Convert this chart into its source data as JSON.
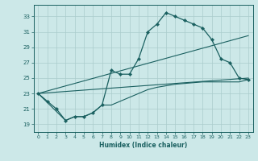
{
  "xlabel": "Humidex (Indice chaleur)",
  "bg_color": "#cce8e8",
  "grid_color": "#aacccc",
  "line_color": "#1a6060",
  "xlim": [
    -0.5,
    23.5
  ],
  "ylim": [
    18.0,
    34.5
  ],
  "yticks": [
    19,
    21,
    23,
    25,
    27,
    29,
    31,
    33
  ],
  "xticks": [
    0,
    1,
    2,
    3,
    4,
    5,
    6,
    7,
    8,
    9,
    10,
    11,
    12,
    13,
    14,
    15,
    16,
    17,
    18,
    19,
    20,
    21,
    22,
    23
  ],
  "main_x": [
    0,
    1,
    2,
    3,
    4,
    5,
    6,
    7,
    8,
    9,
    10,
    11,
    12,
    13,
    14,
    15,
    16,
    17,
    18,
    19,
    20,
    21,
    22,
    23
  ],
  "main_y": [
    23,
    22,
    21,
    19.5,
    20,
    20,
    20.5,
    21.5,
    26,
    25.5,
    25.5,
    27.5,
    31,
    32,
    33.5,
    33,
    32.5,
    32,
    31.5,
    30,
    27.5,
    27,
    25,
    24.8
  ],
  "line2_x": [
    0,
    23
  ],
  "line2_y": [
    23,
    30.5
  ],
  "line3_x": [
    0,
    23
  ],
  "line3_y": [
    23,
    25.0
  ],
  "line4_x": [
    0,
    3,
    4,
    5,
    6,
    7,
    8,
    9,
    10,
    11,
    12,
    13,
    14,
    15,
    16,
    17,
    18,
    19,
    20,
    21,
    22,
    23
  ],
  "line4_y": [
    23,
    19.5,
    20,
    20,
    20.5,
    21.5,
    21.5,
    22.0,
    22.5,
    23.0,
    23.5,
    23.8,
    24.0,
    24.2,
    24.3,
    24.4,
    24.5,
    24.5,
    24.5,
    24.5,
    24.5,
    24.8
  ]
}
